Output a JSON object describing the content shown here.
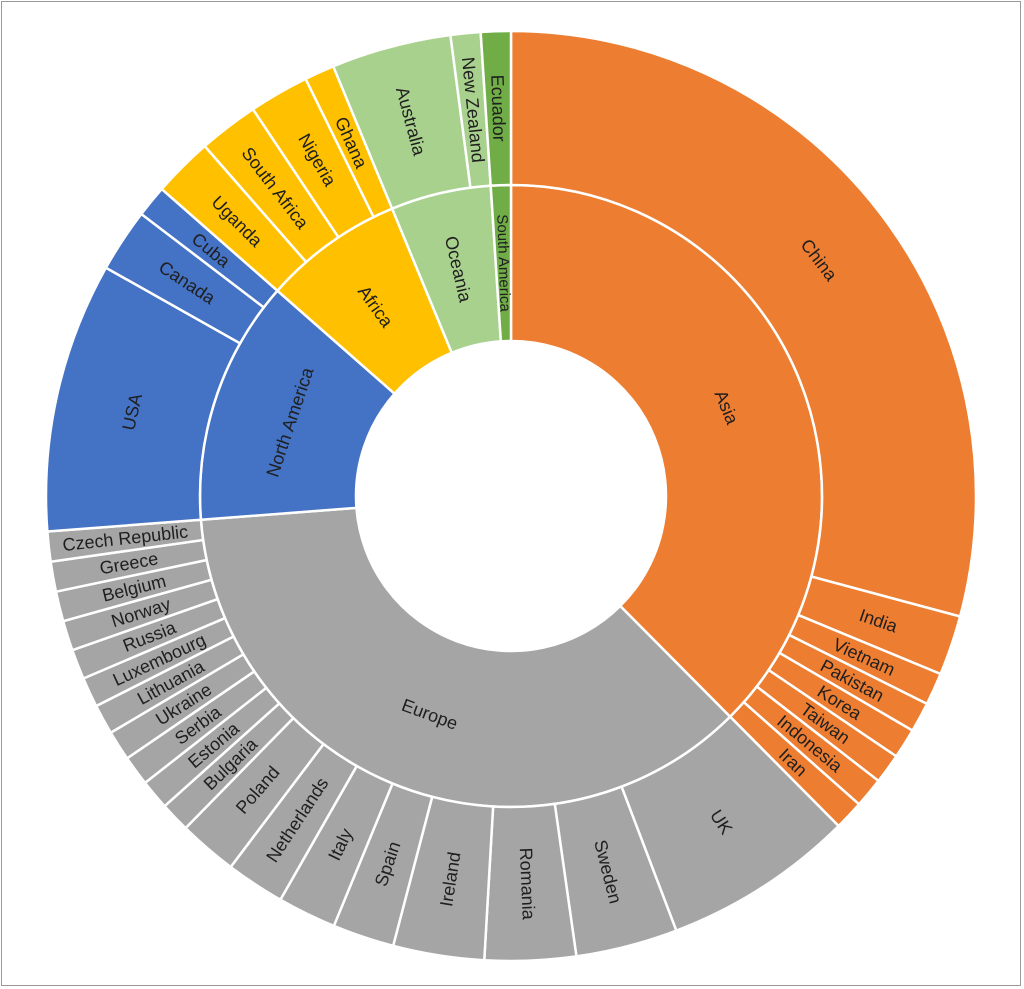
{
  "chart_data": {
    "type": "sunburst",
    "title": "",
    "rings": [
      "region",
      "country"
    ],
    "regions": [
      {
        "name": "Asia",
        "color": "#ED7D31",
        "textColor": "#1f1f1f",
        "children": [
          {
            "name": "China",
            "value": 140.2
          },
          {
            "name": "India",
            "value": 10.0
          },
          {
            "name": "Vietnam",
            "value": 5.4
          },
          {
            "name": "Pakistan",
            "value": 5.0
          },
          {
            "name": "Korea",
            "value": 5.0
          },
          {
            "name": "Taiwan",
            "value": 5.0
          },
          {
            "name": "Indonesia",
            "value": 5.0
          },
          {
            "name": "Iran",
            "value": 4.9
          }
        ]
      },
      {
        "name": "Europe",
        "color": "#A5A5A5",
        "textColor": "#1f1f1f",
        "children": [
          {
            "name": "UK",
            "value": 32.0
          },
          {
            "name": "Sweden",
            "value": 17.0
          },
          {
            "name": "Romania",
            "value": 15.2
          },
          {
            "name": "Ireland",
            "value": 15.2
          },
          {
            "name": "Spain",
            "value": 10.3
          },
          {
            "name": "Italy",
            "value": 9.8
          },
          {
            "name": "Netherlands",
            "value": 9.8
          },
          {
            "name": "Poland",
            "value": 9.8
          },
          {
            "name": "Bulgaria",
            "value": 5.0
          },
          {
            "name": "Estonia",
            "value": 5.0
          },
          {
            "name": "Serbia",
            "value": 5.0
          },
          {
            "name": "Ukraine",
            "value": 5.0
          },
          {
            "name": "Lithuania",
            "value": 5.0
          },
          {
            "name": "Luxembourg",
            "value": 5.0
          },
          {
            "name": "Russia",
            "value": 5.0
          },
          {
            "name": "Norway",
            "value": 5.0
          },
          {
            "name": "Belgium",
            "value": 5.0
          },
          {
            "name": "Greece",
            "value": 5.0
          },
          {
            "name": "Czech Republic",
            "value": 5.0
          }
        ]
      },
      {
        "name": "North America",
        "color": "#4472C4",
        "textColor": "#1f1f1f",
        "children": [
          {
            "name": "USA",
            "value": 45.1
          },
          {
            "name": "Canada",
            "value": 10.6
          },
          {
            "name": "Cuba",
            "value": 5.3
          }
        ]
      },
      {
        "name": "Africa",
        "color": "#FFC000",
        "textColor": "#1f1f1f",
        "children": [
          {
            "name": "Uganda",
            "value": 10.0
          },
          {
            "name": "South Africa",
            "value": 10.0
          },
          {
            "name": "Nigeria",
            "value": 10.0
          },
          {
            "name": "Ghana",
            "value": 5.0
          }
        ]
      },
      {
        "name": "Oceania",
        "color": "#A9D18E",
        "textColor": "#1f1f1f",
        "children": [
          {
            "name": "Australia",
            "value": 20.0
          },
          {
            "name": "New Zealand",
            "value": 5.0
          }
        ]
      },
      {
        "name": "South America",
        "color": "#70AD47",
        "textColor": "#1f1f1f",
        "children": [
          {
            "name": "Ecuador",
            "value": 5.0
          }
        ]
      }
    ]
  }
}
